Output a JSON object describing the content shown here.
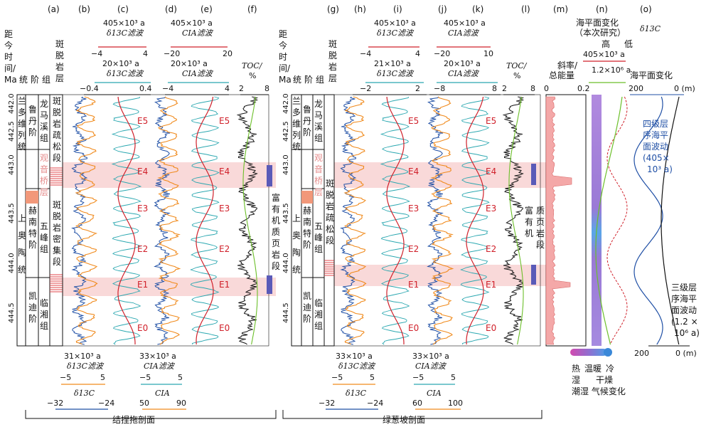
{
  "panels": [
    "(a)",
    "(b)",
    "(c)",
    "(d)",
    "(e)",
    "(f)",
    "(g)",
    "(h)",
    "(i)",
    "(j)",
    "(k)",
    "(l)",
    "(m)",
    "(n)",
    "(o)"
  ],
  "left": {
    "age_header": [
      "距",
      "今",
      "时",
      "间/",
      "Ma"
    ],
    "col_headers": [
      "统",
      "阶",
      "组"
    ],
    "strata_header": [
      "斑",
      "脱",
      "岩",
      "层"
    ],
    "age_ticks": [
      "442.0",
      "442.5",
      "443.0",
      "443.5",
      "444.0",
      "444.5"
    ],
    "series": [
      "兰",
      "多",
      "维",
      "列",
      "统",
      "上",
      "奥",
      "陶",
      "统"
    ],
    "stages": [
      [
        "鲁",
        "丹",
        "阶"
      ],
      [
        "赫",
        "南",
        "特",
        "阶"
      ],
      [
        "凯",
        "迪",
        "阶"
      ]
    ],
    "formations": [
      [
        "龙",
        "马",
        "溪",
        "组"
      ],
      [
        "五",
        "峰",
        "组"
      ],
      [
        "临",
        "湘",
        "组"
      ]
    ],
    "guanyinqiao": [
      "观",
      "音",
      "桥",
      "层"
    ],
    "loose_section": [
      "斑",
      "脱",
      "岩",
      "疏",
      "松",
      "段"
    ],
    "dense_section": [
      "斑",
      "脱",
      "岩",
      "密",
      "集",
      "段"
    ],
    "c_top": [
      "405×10³ a",
      "δ13C滤波",
      "−4",
      "4",
      "20×10³ a",
      "δ13C滤波",
      "−0.4",
      "0.4"
    ],
    "e_top": [
      "405×10³ a",
      "CIA滤波",
      "−20",
      "20",
      "20×10³ a",
      "CIA滤波",
      "−4",
      "4"
    ],
    "f_top": [
      "TOC/",
      "%",
      "2",
      "8"
    ],
    "toc_note": [
      "富",
      "有",
      "机",
      "质",
      "页",
      "岩",
      "段"
    ],
    "b_bottom": [
      "31×10³ a",
      "δ13C滤波",
      "−5",
      "5",
      "δ13C",
      "−32",
      "−24"
    ],
    "d_bottom": [
      "33×10³ a",
      "CIA滤波",
      "−5",
      "5",
      "CIA",
      "50",
      "90"
    ],
    "section_name": "结捏拖剖面"
  },
  "right": {
    "age_header": [
      "距",
      "今",
      "时",
      "间/",
      "Ma"
    ],
    "col_headers": [
      "统",
      "阶",
      "组"
    ],
    "strata_header": [
      "斑",
      "脱",
      "岩",
      "层"
    ],
    "age_ticks": [
      "442.0",
      "442.5",
      "443.0",
      "443.5",
      "444.0",
      "444.5"
    ],
    "series": [
      "兰",
      "多",
      "维",
      "列",
      "统",
      "上",
      "奥",
      "陶",
      "统"
    ],
    "stages": [
      [
        "鲁",
        "丹",
        "阶"
      ],
      [
        "赫",
        "南",
        "特",
        "阶"
      ],
      [
        "凯",
        "迪",
        "阶"
      ]
    ],
    "formations": [
      [
        "龙",
        "马",
        "溪",
        "组"
      ],
      [
        "五",
        "峰",
        "组"
      ],
      [
        "临",
        "湘",
        "组"
      ]
    ],
    "guanyinqiao": [
      "观",
      "音",
      "桥",
      "层"
    ],
    "loose_section": [
      "斑",
      "脱",
      "岩",
      "疏",
      "松",
      "段"
    ],
    "i_top": [
      "405×10³ a",
      "δ13C滤波",
      "−4",
      "4",
      "21×10³ a",
      "δ13C滤波",
      "−2",
      "2"
    ],
    "k_top": [
      "405×10³ a",
      "CIA滤波",
      "−20",
      "10",
      "20×10³ a",
      "CIA滤波",
      "−8",
      "8"
    ],
    "l_top": [
      "TOC/",
      "%",
      "2",
      "8"
    ],
    "toc_note": [
      "富",
      "有",
      "机",
      "质",
      "页",
      "岩",
      "段"
    ],
    "h_bottom": [
      "33×10³ a",
      "δ13C滤波",
      "−5",
      "5",
      "δ13C",
      "−32",
      "−24"
    ],
    "j_bottom": [
      "33×10³ a",
      "CIA滤波",
      "−5",
      "5",
      "CIA",
      "60",
      "100"
    ],
    "section_name": "绿葱坡剖面"
  },
  "eccentricity_labels": [
    "E5",
    "E4",
    "E3",
    "E2",
    "E1",
    "E0"
  ],
  "m": {
    "header": [
      "斜率/",
      "总能量"
    ],
    "ticks": [
      "0",
      "0.2"
    ]
  },
  "n": {
    "sea_title": [
      "海平面变化",
      "（本次研究）"
    ],
    "hilo": [
      "高",
      "低"
    ],
    "filter_a": "405×10³ a",
    "filter_b": "1.2×10⁶ a",
    "legend_title": [
      "热",
      "湿",
      "温暖",
      "冷",
      "干燥"
    ],
    "legend_sub": "潮湿 气候变化"
  },
  "o": {
    "header": "海平面变化",
    "d13c": "δ13C",
    "ticks_top": [
      "200",
      "0 (m)"
    ],
    "ticks_bottom": [
      "200",
      "0 (m)"
    ],
    "fourth_order": [
      "四级层",
      "序海平",
      "面波动",
      "(405×",
      "10³ a)"
    ],
    "third_order": [
      "三级层",
      "序海平",
      "面波动",
      "(1.2 ×",
      "10⁶ a)"
    ]
  },
  "colors": {
    "orange": "#f08a1c",
    "cyan": "#2aa7b0",
    "blue": "#1f4fa5",
    "red": "#d0202a",
    "green": "#6cbf2a",
    "pink": "#f9d9d9",
    "purple": "#9b7ad0"
  }
}
